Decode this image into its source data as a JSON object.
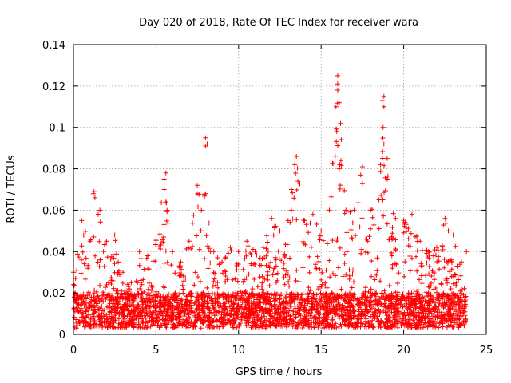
{
  "chart_data": {
    "type": "scatter",
    "title": "Day 020 of 2018, Rate Of TEC Index for receiver wara",
    "xlabel": "GPS time / hours",
    "ylabel": "ROTI / TECUs",
    "xlim": [
      0,
      25
    ],
    "ylim": [
      0,
      0.14
    ],
    "x_ticks": [
      0,
      5,
      10,
      15,
      20,
      25
    ],
    "x_tick_labels": [
      "0",
      "5",
      "10",
      "15",
      "20",
      "25"
    ],
    "y_ticks": [
      0,
      0.02,
      0.04,
      0.06,
      0.08,
      0.1,
      0.12,
      0.14
    ],
    "y_tick_labels": [
      "0",
      "0.02",
      "0.04",
      "0.06",
      "0.08",
      "0.1",
      "0.12",
      "0.14"
    ],
    "grid": true,
    "marker": "+",
    "color": "#ff0000",
    "series": [
      {
        "name": "ROTI",
        "envelope": [
          {
            "x": 0.0,
            "y": 0.03
          },
          {
            "x": 0.5,
            "y": 0.055
          },
          {
            "x": 1.0,
            "y": 0.045
          },
          {
            "x": 1.25,
            "y": 0.069
          },
          {
            "x": 1.5,
            "y": 0.058
          },
          {
            "x": 2.0,
            "y": 0.045
          },
          {
            "x": 2.5,
            "y": 0.048
          },
          {
            "x": 3.0,
            "y": 0.03
          },
          {
            "x": 3.5,
            "y": 0.025
          },
          {
            "x": 4.0,
            "y": 0.04
          },
          {
            "x": 4.5,
            "y": 0.038
          },
          {
            "x": 5.0,
            "y": 0.046
          },
          {
            "x": 5.5,
            "y": 0.075
          },
          {
            "x": 6.0,
            "y": 0.04
          },
          {
            "x": 6.5,
            "y": 0.035
          },
          {
            "x": 7.0,
            "y": 0.045
          },
          {
            "x": 7.5,
            "y": 0.072
          },
          {
            "x": 8.0,
            "y": 0.068
          },
          {
            "x": 8.5,
            "y": 0.04
          },
          {
            "x": 9.0,
            "y": 0.035
          },
          {
            "x": 9.5,
            "y": 0.042
          },
          {
            "x": 10.0,
            "y": 0.04
          },
          {
            "x": 10.5,
            "y": 0.045
          },
          {
            "x": 11.0,
            "y": 0.04
          },
          {
            "x": 11.5,
            "y": 0.042
          },
          {
            "x": 12.0,
            "y": 0.056
          },
          {
            "x": 12.5,
            "y": 0.05
          },
          {
            "x": 13.0,
            "y": 0.055
          },
          {
            "x": 13.5,
            "y": 0.086
          },
          {
            "x": 14.0,
            "y": 0.055
          },
          {
            "x": 14.5,
            "y": 0.058
          },
          {
            "x": 15.0,
            "y": 0.05
          },
          {
            "x": 15.5,
            "y": 0.06
          },
          {
            "x": 16.0,
            "y": 0.125
          },
          {
            "x": 16.5,
            "y": 0.06
          },
          {
            "x": 17.0,
            "y": 0.06
          },
          {
            "x": 17.5,
            "y": 0.081
          },
          {
            "x": 18.0,
            "y": 0.06
          },
          {
            "x": 18.5,
            "y": 0.065
          },
          {
            "x": 18.8,
            "y": 0.115
          },
          {
            "x": 19.0,
            "y": 0.085
          },
          {
            "x": 19.5,
            "y": 0.056
          },
          {
            "x": 20.0,
            "y": 0.055
          },
          {
            "x": 20.5,
            "y": 0.058
          },
          {
            "x": 21.0,
            "y": 0.045
          },
          {
            "x": 21.5,
            "y": 0.04
          },
          {
            "x": 22.0,
            "y": 0.042
          },
          {
            "x": 22.5,
            "y": 0.056
          },
          {
            "x": 23.0,
            "y": 0.048
          },
          {
            "x": 23.5,
            "y": 0.035
          },
          {
            "x": 23.8,
            "y": 0.04
          }
        ],
        "outliers": [
          {
            "x": 8.0,
            "y": 0.095
          },
          {
            "x": 8.0,
            "y": 0.091
          },
          {
            "x": 7.9,
            "y": 0.092
          },
          {
            "x": 8.1,
            "y": 0.092
          },
          {
            "x": 16.0,
            "y": 0.121
          },
          {
            "x": 16.0,
            "y": 0.118
          },
          {
            "x": 15.9,
            "y": 0.11
          },
          {
            "x": 16.1,
            "y": 0.112
          },
          {
            "x": 15.95,
            "y": 0.098
          },
          {
            "x": 18.7,
            "y": 0.113
          },
          {
            "x": 18.8,
            "y": 0.11
          },
          {
            "x": 18.75,
            "y": 0.1
          },
          {
            "x": 18.8,
            "y": 0.092
          },
          {
            "x": 13.4,
            "y": 0.082
          },
          {
            "x": 13.2,
            "y": 0.07
          },
          {
            "x": 13.6,
            "y": 0.074
          },
          {
            "x": 17.4,
            "y": 0.077
          },
          {
            "x": 17.5,
            "y": 0.073
          },
          {
            "x": 5.6,
            "y": 0.078
          },
          {
            "x": 5.5,
            "y": 0.07
          },
          {
            "x": 5.6,
            "y": 0.064
          },
          {
            "x": 7.5,
            "y": 0.068
          },
          {
            "x": 1.2,
            "y": 0.068
          },
          {
            "x": 1.3,
            "y": 0.066
          },
          {
            "x": 1.6,
            "y": 0.06
          },
          {
            "x": 16.2,
            "y": 0.084
          },
          {
            "x": 16.1,
            "y": 0.08
          },
          {
            "x": 18.6,
            "y": 0.082
          },
          {
            "x": 19.0,
            "y": 0.075
          }
        ],
        "baseline_range": [
          0.003,
          0.02
        ]
      }
    ]
  }
}
